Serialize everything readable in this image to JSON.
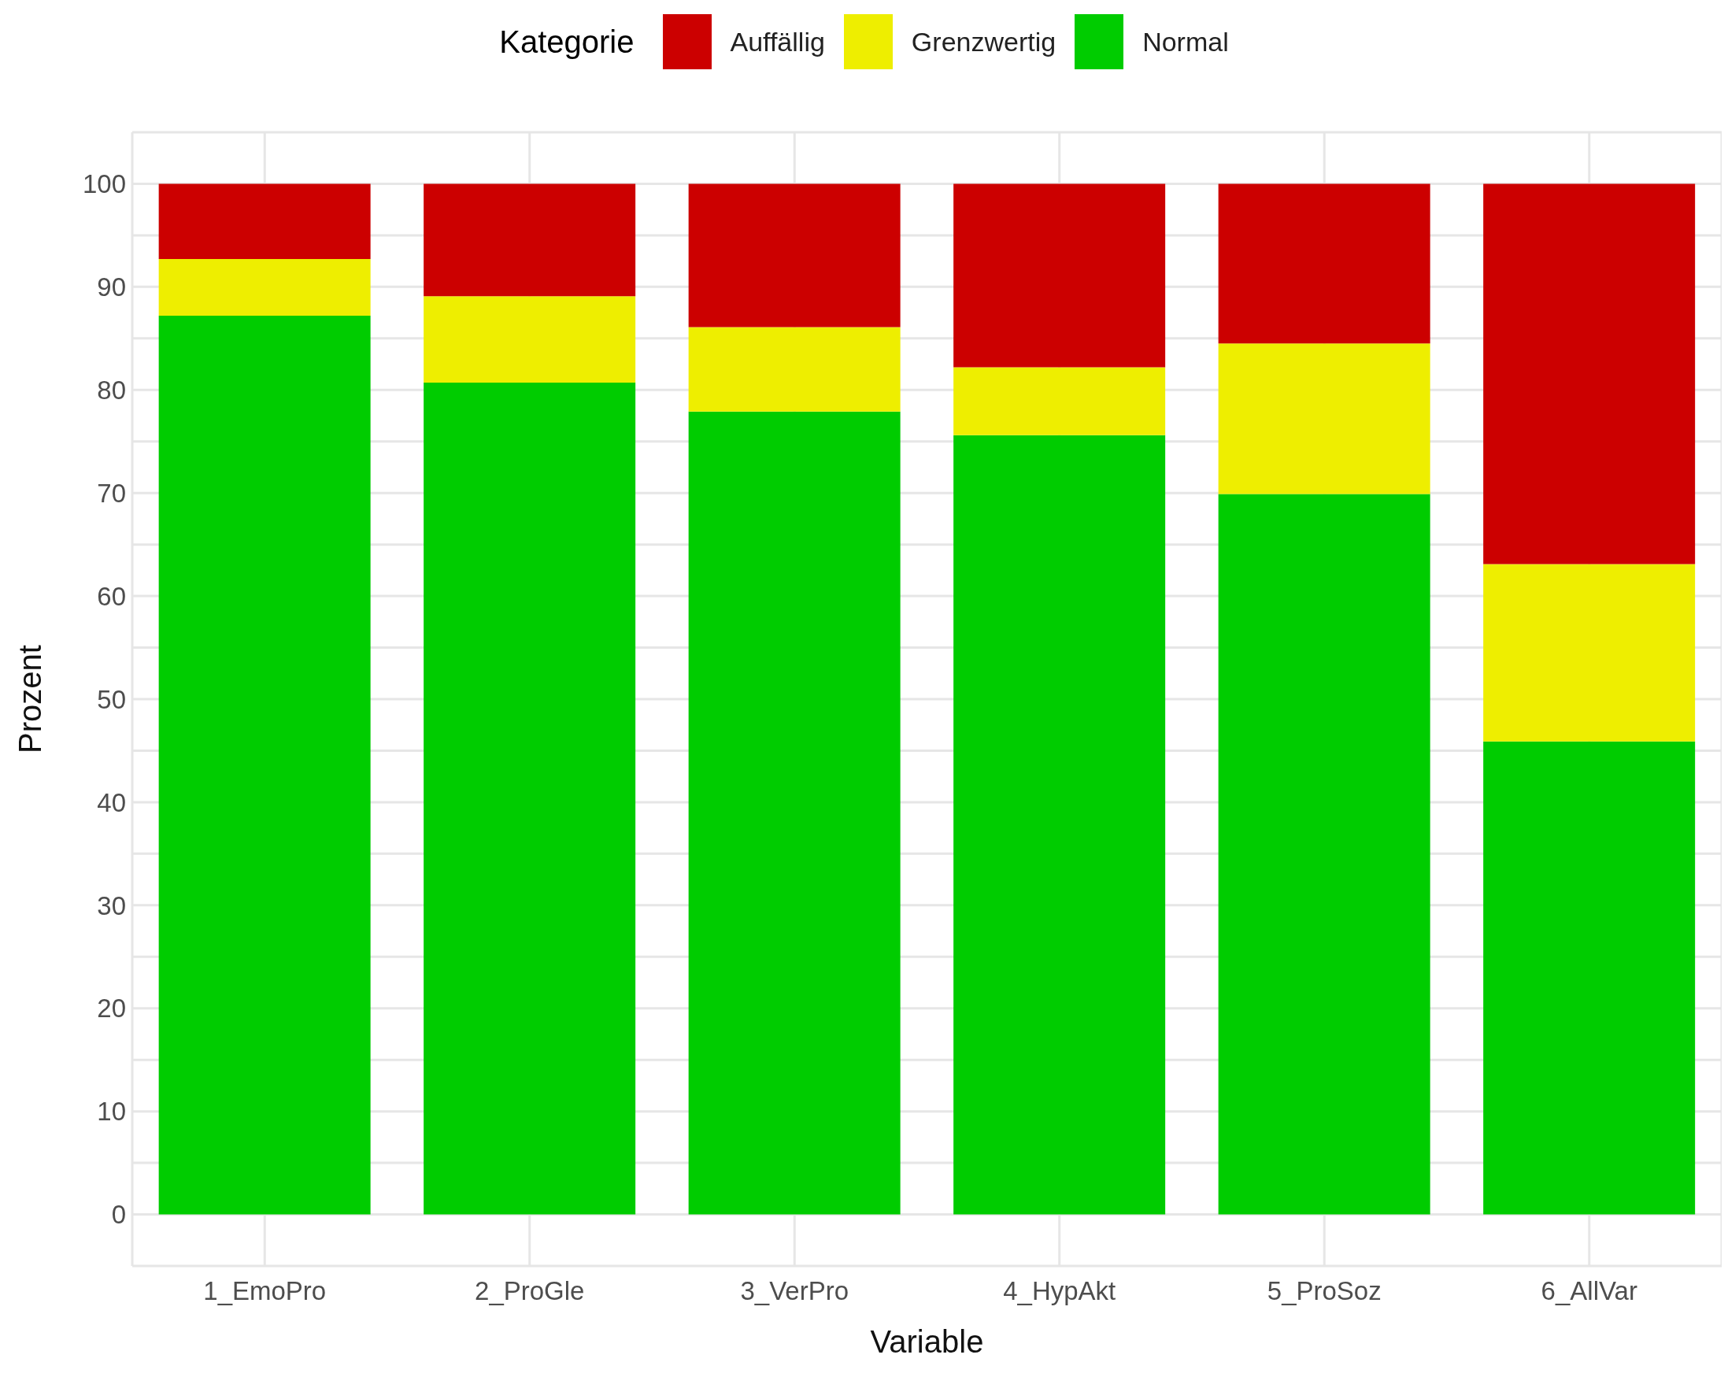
{
  "chart_data": {
    "type": "bar",
    "stacked": true,
    "xlabel": "Variable",
    "ylabel": "Prozent",
    "legend_title": "Kategorie",
    "legend": "top",
    "grid": true,
    "categories": [
      "1_EmoPro",
      "2_ProGle",
      "3_VerPro",
      "4_HypAkt",
      "5_ProSoz",
      "6_AllVar"
    ],
    "series": [
      {
        "name": "Normal",
        "color": "#00cc00",
        "values": [
          87.2,
          80.7,
          77.9,
          75.6,
          69.9,
          45.9
        ]
      },
      {
        "name": "Grenzwertig",
        "color": "#eeee00",
        "values": [
          5.5,
          8.4,
          8.2,
          6.6,
          14.6,
          17.2
        ]
      },
      {
        "name": "Auffällig",
        "color": "#cc0000",
        "values": [
          7.3,
          10.9,
          13.9,
          17.8,
          15.5,
          36.9
        ]
      }
    ],
    "ylim": [
      -5,
      105
    ],
    "yticks": [
      {
        "value": -5,
        "label": null
      },
      0,
      {
        "value": 5,
        "label": null
      },
      10,
      {
        "value": 15,
        "label": null
      },
      20,
      {
        "value": 25,
        "label": null
      },
      30,
      {
        "value": 35,
        "label": null
      },
      40,
      {
        "value": 45,
        "label": null
      },
      50,
      {
        "value": 55,
        "label": null
      },
      60,
      {
        "value": 65,
        "label": null
      },
      70,
      {
        "value": 75,
        "label": null
      },
      80,
      {
        "value": 85,
        "label": null
      },
      90,
      {
        "value": 95,
        "label": null
      },
      100,
      {
        "value": 105,
        "label": null
      }
    ]
  }
}
